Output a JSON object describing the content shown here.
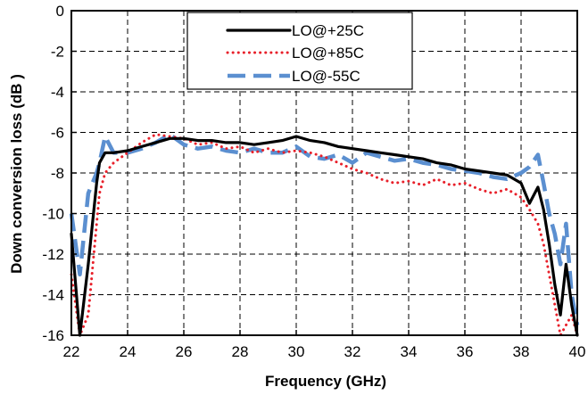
{
  "chart_data": {
    "type": "line",
    "title": "",
    "xlabel": "Frequency (GHz)",
    "ylabel": "Down conversion loss (dB )",
    "xlim": [
      22,
      40
    ],
    "ylim": [
      -16,
      0
    ],
    "xticks": [
      "22",
      "24",
      "26",
      "28",
      "30",
      "32",
      "34",
      "36",
      "38",
      "40"
    ],
    "yticks": [
      "0",
      "-2",
      "-4",
      "-6",
      "-8",
      "-10",
      "-12",
      "-14",
      "-16"
    ],
    "grid": true,
    "legend_position": "top-center",
    "series": [
      {
        "name": "LO@+25C",
        "color": "#000000",
        "style": "solid",
        "x": [
          22.0,
          22.3,
          22.6,
          22.9,
          23.0,
          23.2,
          23.5,
          24.0,
          24.5,
          25.0,
          25.5,
          26.0,
          26.5,
          27.0,
          27.5,
          28.0,
          28.5,
          29.0,
          29.5,
          30.0,
          30.5,
          31.0,
          31.5,
          32.0,
          32.5,
          33.0,
          33.5,
          34.0,
          34.5,
          35.0,
          35.5,
          36.0,
          36.5,
          37.0,
          37.5,
          38.0,
          38.3,
          38.6,
          38.8,
          39.0,
          39.2,
          39.4,
          39.6,
          39.8,
          40.0
        ],
        "y": [
          -11.0,
          -16.0,
          -12.5,
          -8.5,
          -7.5,
          -7.0,
          -7.0,
          -6.9,
          -6.7,
          -6.5,
          -6.3,
          -6.3,
          -6.4,
          -6.4,
          -6.5,
          -6.5,
          -6.6,
          -6.5,
          -6.4,
          -6.2,
          -6.4,
          -6.5,
          -6.7,
          -6.8,
          -6.9,
          -7.0,
          -7.1,
          -7.2,
          -7.3,
          -7.5,
          -7.6,
          -7.8,
          -7.9,
          -8.0,
          -8.1,
          -8.5,
          -9.5,
          -8.7,
          -9.8,
          -11.5,
          -13.5,
          -15.0,
          -12.5,
          -14.5,
          -16.0
        ]
      },
      {
        "name": "LO@+85C",
        "color": "#e8202a",
        "style": "dotted",
        "x": [
          22.0,
          22.3,
          22.6,
          22.9,
          23.0,
          23.2,
          23.5,
          24.0,
          24.5,
          25.0,
          25.5,
          26.0,
          26.5,
          27.0,
          27.5,
          28.0,
          28.5,
          29.0,
          29.5,
          30.0,
          30.5,
          31.0,
          31.5,
          32.0,
          32.5,
          33.0,
          33.5,
          34.0,
          34.5,
          35.0,
          35.5,
          36.0,
          36.5,
          37.0,
          37.5,
          38.0,
          38.3,
          38.6,
          38.8,
          39.0,
          39.2,
          39.4,
          39.6,
          39.8,
          40.0
        ],
        "y": [
          -13.0,
          -16.0,
          -15.0,
          -10.5,
          -9.0,
          -8.0,
          -7.5,
          -7.0,
          -6.5,
          -6.1,
          -6.2,
          -6.3,
          -6.6,
          -6.5,
          -6.8,
          -6.7,
          -7.0,
          -6.8,
          -7.0,
          -6.9,
          -7.0,
          -7.2,
          -7.5,
          -7.8,
          -8.0,
          -8.3,
          -8.5,
          -8.4,
          -8.6,
          -8.3,
          -8.6,
          -8.5,
          -8.8,
          -9.0,
          -8.8,
          -9.2,
          -9.8,
          -10.5,
          -11.5,
          -13.0,
          -14.5,
          -16.0,
          -15.5,
          -15.0,
          -16.0
        ]
      },
      {
        "name": "LO@-55C",
        "color": "#5b8fd0",
        "style": "dashed",
        "x": [
          22.0,
          22.3,
          22.6,
          22.9,
          23.0,
          23.2,
          23.5,
          24.0,
          24.5,
          25.0,
          25.5,
          26.0,
          26.5,
          27.0,
          27.5,
          28.0,
          28.5,
          29.0,
          29.5,
          30.0,
          30.5,
          31.0,
          31.5,
          32.0,
          32.5,
          33.0,
          33.5,
          34.0,
          34.5,
          35.0,
          35.5,
          36.0,
          36.5,
          37.0,
          37.5,
          38.0,
          38.3,
          38.6,
          38.8,
          39.0,
          39.2,
          39.4,
          39.6,
          39.8,
          40.0
        ],
        "y": [
          -10.0,
          -13.0,
          -9.0,
          -8.0,
          -7.5,
          -6.2,
          -7.0,
          -7.0,
          -6.8,
          -6.5,
          -6.1,
          -6.6,
          -6.8,
          -6.7,
          -6.9,
          -7.0,
          -6.8,
          -7.0,
          -7.0,
          -6.7,
          -7.2,
          -7.3,
          -7.1,
          -7.5,
          -7.0,
          -7.2,
          -7.4,
          -7.3,
          -7.5,
          -7.6,
          -7.8,
          -7.9,
          -8.0,
          -8.2,
          -8.3,
          -8.0,
          -7.7,
          -7.1,
          -8.5,
          -10.0,
          -11.0,
          -12.5,
          -10.5,
          -14.0,
          -15.5
        ]
      }
    ]
  }
}
